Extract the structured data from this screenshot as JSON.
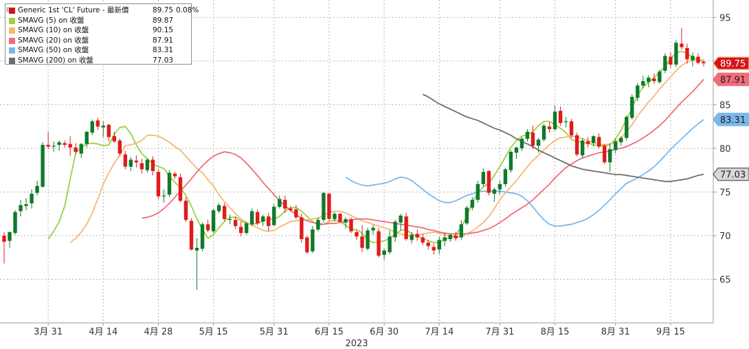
{
  "legend": {
    "collapse_glyph": "⊟",
    "items": [
      {
        "label": "Generic 1st 'CL' Future - 最新價",
        "value": "89.75",
        "change": "0.08%",
        "color": "#d4141c"
      },
      {
        "label": "SMAVG (5)  on 收盤",
        "value": "89.87",
        "color": "#9bd03f"
      },
      {
        "label": "SMAVG (10)  on 收盤",
        "value": "90.15",
        "color": "#f5b870"
      },
      {
        "label": "SMAVG (20)  on 收盤",
        "value": "87.91",
        "color": "#f06c7a"
      },
      {
        "label": "SMAVG (50)  on 收盤",
        "value": "83.31",
        "color": "#7ab8ec"
      },
      {
        "label": "SMAVG (200)  on 收盤",
        "value": "77.03",
        "color": "#6e6e6e"
      }
    ]
  },
  "chart_data": {
    "type": "candlestick",
    "ylim": [
      60,
      97
    ],
    "y_ticks": [
      65,
      70,
      75,
      80,
      85,
      90,
      95
    ],
    "x_tick_labels": [
      "3月 31",
      "4月 14",
      "4月 28",
      "5月 15",
      "5月 31",
      "6月 15",
      "6月 30",
      "7月 14",
      "7月 31",
      "8月 15",
      "8月 31",
      "9月 15"
    ],
    "x_tick_index": [
      8,
      18,
      28,
      38,
      49,
      59,
      69,
      79,
      90,
      100,
      111,
      121
    ],
    "year_label": "2023",
    "year_label_index": 64,
    "grid": true,
    "colors": {
      "up": "#0f7a2a",
      "down": "#e01b1b",
      "wick": "#1a1a1a"
    },
    "candles_ohlc": [
      [
        70,
        70.4,
        66.8,
        69.3
      ],
      [
        69.4,
        70.5,
        68.6,
        70.4
      ],
      [
        70.3,
        72.9,
        70.1,
        72.7
      ],
      [
        72.8,
        74.1,
        72.2,
        73.5
      ],
      [
        73.4,
        74.3,
        72.9,
        73.6
      ],
      [
        73.7,
        75.3,
        73.1,
        74.8
      ],
      [
        74.9,
        76.3,
        74.6,
        75.7
      ],
      [
        75.6,
        80.7,
        75.5,
        80.4
      ],
      [
        80.4,
        81.9,
        79.9,
        80.2
      ],
      [
        80.2,
        80.8,
        79.6,
        80.3
      ],
      [
        80.4,
        80.9,
        79.7,
        80.7
      ],
      [
        80.6,
        80.9,
        80.1,
        80.4
      ],
      [
        80.5,
        81.4,
        79.1,
        80.1
      ],
      [
        80.1,
        80.6,
        79.3,
        79.6
      ],
      [
        79.4,
        80.6,
        78.9,
        80.5
      ],
      [
        80.5,
        82,
        80.1,
        81.9
      ],
      [
        81.8,
        83.3,
        81.5,
        83.1
      ],
      [
        83.2,
        83.5,
        82.1,
        82.5
      ],
      [
        82.4,
        83.1,
        81.3,
        82.6
      ],
      [
        82.7,
        82.8,
        80.8,
        81.3
      ],
      [
        81.4,
        81.9,
        80.6,
        80.8
      ],
      [
        80.9,
        81.1,
        79.1,
        79.4
      ],
      [
        79.3,
        79.7,
        77.6,
        77.9
      ],
      [
        77.9,
        79,
        77.4,
        78.7
      ],
      [
        78.6,
        79.2,
        77.8,
        78.4
      ],
      [
        78.3,
        78.8,
        77.1,
        77.6
      ],
      [
        77.5,
        78.9,
        77.2,
        78.7
      ],
      [
        78.7,
        79.1,
        76.9,
        77.4
      ],
      [
        77.3,
        77.6,
        74.2,
        74.5
      ],
      [
        74.5,
        75.3,
        73.8,
        74.6
      ],
      [
        74.7,
        77.5,
        74.4,
        77.2
      ],
      [
        77.1,
        77.3,
        76.5,
        76.8
      ],
      [
        76.7,
        77.1,
        73.8,
        74
      ],
      [
        74,
        74.4,
        71.6,
        71.8
      ],
      [
        71.7,
        72,
        68.3,
        68.4
      ],
      [
        68.3,
        69.7,
        63.8,
        68.6
      ],
      [
        68.5,
        71.5,
        68.2,
        71.3
      ],
      [
        71.3,
        71.8,
        70.4,
        70.6
      ],
      [
        70.5,
        73.1,
        70.3,
        72.9
      ],
      [
        72.8,
        73.7,
        72.6,
        73.5
      ],
      [
        73.4,
        73.7,
        71.7,
        71.9
      ],
      [
        71.8,
        72.4,
        71.3,
        71.9
      ],
      [
        71.8,
        72.2,
        70.8,
        71.1
      ],
      [
        71,
        71.6,
        69.9,
        70.3
      ],
      [
        70.3,
        71.6,
        70.1,
        71.4
      ],
      [
        71.3,
        73.1,
        71.1,
        72.8
      ],
      [
        72.7,
        73,
        71.2,
        71.4
      ],
      [
        71.6,
        72.4,
        71.1,
        72.2
      ],
      [
        72.2,
        72.6,
        70.5,
        71.1
      ],
      [
        71.2,
        73.6,
        71.1,
        73.3
      ],
      [
        73.3,
        74.6,
        73.1,
        74.2
      ],
      [
        74.1,
        74.6,
        72.6,
        73.1
      ],
      [
        73.1,
        73.4,
        72.7,
        72.9
      ],
      [
        73,
        73.5,
        71.9,
        72.1
      ],
      [
        72.1,
        72.5,
        69.2,
        69.6
      ],
      [
        69.8,
        70,
        67.9,
        68.1
      ],
      [
        68.2,
        71.1,
        68,
        70.7
      ],
      [
        70.7,
        72.1,
        70.5,
        71.8
      ],
      [
        71.8,
        75,
        71.5,
        74.9
      ],
      [
        74.8,
        74.9,
        71.7,
        71.9
      ],
      [
        71.9,
        72.7,
        71.6,
        72.5
      ],
      [
        72.5,
        72.6,
        71.5,
        71.6
      ],
      [
        71.5,
        72.1,
        70.8,
        71.9
      ],
      [
        71.9,
        72.1,
        70.3,
        70.5
      ],
      [
        70.4,
        70.6,
        69.5,
        69.9
      ],
      [
        69.9,
        71.2,
        68.1,
        68.6
      ],
      [
        68.5,
        70.9,
        68.3,
        70.6
      ],
      [
        70.6,
        71.2,
        70.1,
        70.9
      ],
      [
        70.5,
        70.9,
        67.5,
        67.7
      ],
      [
        67.8,
        68.5,
        67.2,
        68.3
      ],
      [
        68.1,
        70.6,
        67.9,
        69.9
      ],
      [
        69.8,
        71.8,
        69.3,
        71.6
      ],
      [
        71.5,
        72.5,
        70.6,
        72.3
      ],
      [
        72.2,
        72.6,
        69.4,
        69.6
      ],
      [
        69.5,
        70.4,
        69.1,
        70.1
      ],
      [
        70.2,
        70.7,
        69.4,
        69.8
      ],
      [
        69.8,
        70.2,
        68.9,
        69.2
      ],
      [
        69.2,
        69.5,
        68.4,
        68.8
      ],
      [
        68.7,
        69.1,
        67.8,
        68.3
      ],
      [
        68.4,
        69.9,
        67.9,
        69.5
      ],
      [
        69.4,
        70.3,
        68.8,
        69.8
      ],
      [
        69.6,
        70.2,
        69.3,
        70.1
      ],
      [
        70,
        70.4,
        69.4,
        69.7
      ],
      [
        69.8,
        71.8,
        69.5,
        71.3
      ],
      [
        71.4,
        73.4,
        71.2,
        73.2
      ],
      [
        73.2,
        74.4,
        72.9,
        74.1
      ],
      [
        74.1,
        76.3,
        73.8,
        75.9
      ],
      [
        75.9,
        77.7,
        75.6,
        77.3
      ],
      [
        77.4,
        77.5,
        74.6,
        74.9
      ],
      [
        74.8,
        75.5,
        73.9,
        75.3
      ],
      [
        75.3,
        76.3,
        74.7,
        75.9
      ],
      [
        75.9,
        77.8,
        75.6,
        77.6
      ],
      [
        77.5,
        79.8,
        77.2,
        79.6
      ],
      [
        79.5,
        80.2,
        78.8,
        80.1
      ],
      [
        80,
        81.3,
        79.7,
        81.1
      ],
      [
        81.1,
        82.2,
        80.8,
        81.9
      ],
      [
        81.8,
        82.6,
        79.9,
        80.3
      ],
      [
        80.3,
        81.2,
        79.5,
        81
      ],
      [
        81,
        82.8,
        80.8,
        82.6
      ],
      [
        82.5,
        83,
        81.8,
        82.2
      ],
      [
        82.2,
        84.9,
        82,
        84.2
      ],
      [
        84.3,
        84.8,
        82.6,
        82.9
      ],
      [
        83,
        83.6,
        82.4,
        83.1
      ],
      [
        83.1,
        83.4,
        81.2,
        81.5
      ],
      [
        81.5,
        81.8,
        79.1,
        79.3
      ],
      [
        79.2,
        81.2,
        78.9,
        80.9
      ],
      [
        80.8,
        81.3,
        80.1,
        80.5
      ],
      [
        80.6,
        81.5,
        80.2,
        81.4
      ],
      [
        81.3,
        81.7,
        80,
        80.2
      ],
      [
        80.3,
        80.5,
        78.2,
        78.4
      ],
      [
        78.4,
        80.6,
        77.3,
        79.9
      ],
      [
        79.8,
        81.1,
        79.4,
        80.8
      ],
      [
        80.7,
        81.4,
        80.3,
        81.2
      ],
      [
        81.2,
        83.8,
        80.9,
        83.6
      ],
      [
        83.5,
        86.2,
        83.3,
        85.9
      ],
      [
        85.8,
        87.5,
        85.4,
        87.2
      ],
      [
        87.2,
        88.3,
        86.9,
        87.7
      ],
      [
        87.6,
        88.4,
        87,
        88.1
      ],
      [
        88,
        88.6,
        87.4,
        87.7
      ],
      [
        87.6,
        89,
        87.4,
        88.8
      ],
      [
        88.9,
        90.9,
        88.6,
        90.6
      ],
      [
        90.5,
        91,
        89.2,
        89.6
      ],
      [
        89.6,
        92.4,
        89.3,
        92.1
      ],
      [
        92,
        93.8,
        91.3,
        91.6
      ],
      [
        91.5,
        92,
        89.7,
        90.2
      ],
      [
        90.1,
        91,
        89.4,
        90.6
      ],
      [
        90.5,
        90.9,
        89.6,
        89.8
      ],
      [
        89.9,
        90.1,
        89.4,
        89.75
      ]
    ],
    "sma_series": [
      {
        "name": "SMAVG (5)",
        "color": "#9bd03f",
        "values": [
          69.6,
          70.5,
          71.6,
          73.4,
          76.5,
          79.5,
          80.1,
          80.5,
          80.6,
          80.5,
          80.3,
          80.4,
          81.6,
          82.4,
          82.5,
          81.7,
          80.4,
          79.4,
          78.8,
          78.2,
          77.9,
          77.7,
          76.8,
          76.1,
          75.5,
          74.6,
          73.4,
          71.9,
          70.7,
          69.7,
          70.1,
          70.9,
          71.6,
          72.1,
          72.1,
          71.7,
          71.4,
          71.3,
          71.4,
          71.7,
          71.9,
          71.9,
          72.2,
          72.8,
          73.2,
          73.2,
          72.8,
          72.2,
          71.6,
          71.2,
          71.3,
          71.6,
          71.8,
          71.6,
          71.2,
          70.7,
          70.7,
          70.3,
          69.5,
          69.2,
          69.3,
          69.4,
          69.7,
          70.1,
          70.6,
          70.7,
          70.2,
          69.9,
          69.7,
          69.4,
          69.2,
          69.2,
          69.6,
          69.8,
          70.1,
          71,
          72.2,
          73.8,
          74.9,
          75.6,
          76,
          76.9,
          77.9,
          79,
          80.1,
          80.9,
          81.4,
          81.6,
          81.9,
          82.6,
          83.1,
          83.1,
          82.7,
          82.3,
          81.8,
          81,
          80.8,
          80.7,
          80.6,
          80.4,
          80.3,
          80.3,
          80.4,
          81.1,
          82.1,
          83.3,
          84.6,
          86.1,
          87,
          87.6,
          88.1,
          88.7,
          89.4,
          90.2,
          91,
          91.1,
          90.9,
          90.4,
          90.2,
          89.9
        ]
      },
      {
        "name": "SMAVG (10)",
        "color": "#f5b870",
        "values": [
          69.2,
          69.7,
          70.4,
          71.3,
          72.6,
          74.2,
          75.9,
          77.2,
          78.3,
          79.2,
          80.3,
          80.4,
          80.6,
          80.9,
          81.5,
          81.5,
          81.4,
          81.1,
          80.7,
          80.2,
          79.8,
          79.1,
          78.4,
          77.7,
          77.2,
          76.4,
          75.7,
          74.7,
          73.9,
          73.2,
          72.5,
          71.9,
          71.5,
          71.2,
          70.9,
          70.6,
          70.5,
          70.6,
          71,
          71.3,
          71.6,
          71.7,
          71.8,
          71.8,
          71.9,
          72,
          72.3,
          72.6,
          72.8,
          72.8,
          72.6,
          72.3,
          72,
          71.7,
          71.5,
          71.3,
          71.1,
          70.9,
          70.7,
          70.4,
          70.2,
          70,
          70,
          70,
          70.2,
          70.3,
          70.4,
          70.3,
          70.1,
          69.9,
          69.8,
          69.9,
          70.2,
          70.5,
          71,
          71.5,
          72.2,
          73.1,
          74.1,
          74.9,
          75.6,
          76.3,
          77.1,
          77.9,
          78.6,
          79.2,
          79.8,
          80.4,
          80.9,
          81.2,
          81.3,
          81.4,
          81.3,
          81.1,
          80.9,
          80.7,
          80.5,
          80.4,
          80.5,
          80.7,
          81.2,
          81.9,
          82.7,
          83.7,
          84.5,
          85.3,
          86,
          86.8,
          87.5,
          88.2,
          88.9,
          89.5,
          89.9,
          90.1,
          90.1,
          90.15
        ]
      },
      {
        "name": "SMAVG (20)",
        "color": "#f06c7a",
        "values": [
          72,
          72.1,
          72.3,
          72.6,
          73.1,
          73.7,
          74.4,
          75.1,
          75.8,
          76.5,
          77.3,
          78,
          78.6,
          79.1,
          79.4,
          79.6,
          79.5,
          79.3,
          78.9,
          78.3,
          77.6,
          76.9,
          76.1,
          75.4,
          74.7,
          74,
          73.4,
          72.9,
          72.4,
          72,
          71.7,
          71.5,
          71.4,
          71.3,
          71.4,
          71.4,
          71.5,
          71.6,
          71.8,
          71.9,
          71.9,
          71.9,
          71.8,
          71.7,
          71.6,
          71.5,
          71.4,
          71.3,
          71.2,
          71.1,
          71,
          70.9,
          70.7,
          70.6,
          70.4,
          70.3,
          70.2,
          70.2,
          70.2,
          70.2,
          70.3,
          70.4,
          70.6,
          70.8,
          71.1,
          71.5,
          71.9,
          72.4,
          72.8,
          73.2,
          73.6,
          74.1,
          74.7,
          75.3,
          75.9,
          76.6,
          77.2,
          77.8,
          78.2,
          78.6,
          78.9,
          79.1,
          79.3,
          79.5,
          79.6,
          79.7,
          79.9,
          80,
          80.2,
          80.5,
          80.8,
          81.2,
          81.6,
          82.1,
          82.6,
          83.2,
          83.9,
          84.6,
          85.3,
          85.9,
          86.5,
          87.2,
          87.91
        ]
      },
      {
        "name": "SMAVG (50)",
        "color": "#7ab8ec",
        "values": [
          76.7,
          76.3,
          76,
          75.8,
          75.7,
          75.8,
          75.9,
          76,
          76.2,
          76.5,
          76.7,
          76.6,
          76.3,
          75.8,
          75.3,
          74.8,
          74.4,
          74,
          73.8,
          73.8,
          74,
          74.3,
          74.6,
          74.8,
          75,
          75.1,
          75.1,
          75.1,
          75.1,
          75,
          74.9,
          74.8,
          74.5,
          74,
          73.3,
          72.5,
          71.8,
          71.3,
          71.1,
          71.1,
          71.2,
          71.3,
          71.5,
          71.7,
          72,
          72.4,
          72.9,
          73.5,
          74.1,
          74.8,
          75.4,
          76,
          76.3,
          76.6,
          77,
          77.4,
          77.9,
          78.5,
          79.2,
          79.9,
          80.5,
          81.1,
          81.7,
          82.3,
          82.8,
          83.31
        ]
      },
      {
        "name": "SMAVG (200)",
        "color": "#6e6e6e",
        "values": [
          86.2,
          85.9,
          85.5,
          85.1,
          84.8,
          84.5,
          84.2,
          83.9,
          83.6,
          83.4,
          83.2,
          82.9,
          82.6,
          82.3,
          82.1,
          81.8,
          81.5,
          81.1,
          80.8,
          80.5,
          80.2,
          79.8,
          79.5,
          79.2,
          78.9,
          78.6,
          78.3,
          78,
          77.8,
          77.6,
          77.5,
          77.4,
          77.3,
          77.2,
          77.1,
          77,
          77,
          76.9,
          76.8,
          76.7,
          76.6,
          76.5,
          76.4,
          76.3,
          76.2,
          76.2,
          76.3,
          76.4,
          76.5,
          76.7,
          76.9,
          77.03
        ]
      }
    ],
    "price_tags": [
      {
        "label": "89.75",
        "value": 89.75,
        "fill": "#d4141c",
        "text": "#ffffff",
        "outline": "#f5b870"
      },
      {
        "label": "87.91",
        "value": 87.91,
        "fill": "#f06c7a",
        "text": "#1a1a1a",
        "outline": "#f06c7a"
      },
      {
        "label": "83.31",
        "value": 83.31,
        "fill": "#7ab8ec",
        "text": "#1a1a1a",
        "outline": "#7ab8ec"
      },
      {
        "label": "77.03",
        "value": 77.03,
        "fill": "#d9d9d9",
        "text": "#1a1a1a",
        "outline": "#6e6e6e"
      }
    ]
  }
}
